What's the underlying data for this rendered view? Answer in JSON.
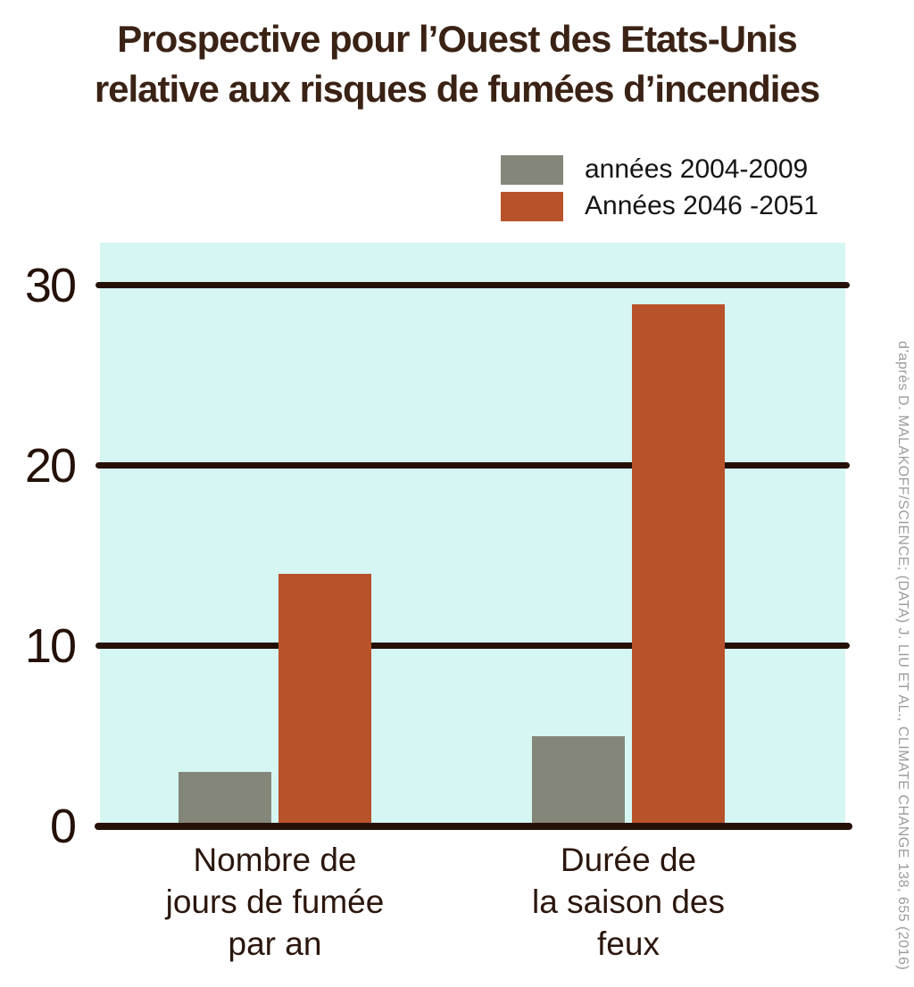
{
  "title": {
    "line1": "Prospective pour l’Ouest des Etats-Unis",
    "line2": "relative aux risques de fumées d’incendies"
  },
  "legend": {
    "items": [
      {
        "label": "années 2004-2009",
        "color": "#85867a"
      },
      {
        "label": "Années 2046 -2051",
        "color": "#b8522b"
      }
    ]
  },
  "credit": "d’après D. MALAKOFF/SCIENCE; (DATA) J. LIU ET AL., CLIMATE CHANGE 138, 655 (2016)",
  "chart_data": {
    "type": "bar",
    "title": "Prospective pour l’Ouest des Etats-Unis relative aux risques de fumées d’incendies",
    "categories": [
      [
        "Nombre de",
        "jours de fumée",
        "par an"
      ],
      [
        "Durée de",
        "la saison des",
        "feux"
      ]
    ],
    "series": [
      {
        "name": "années 2004-2009",
        "color": "#85867a",
        "values": [
          3,
          5
        ]
      },
      {
        "name": "Années 2046 -2051",
        "color": "#b8522b",
        "values": [
          14,
          29
        ]
      }
    ],
    "xlabel": "",
    "ylabel": "",
    "yticks": [
      0,
      10,
      20,
      30
    ],
    "ylim": [
      0,
      32.4
    ],
    "grid": "horizontal",
    "legend_position": "top-right",
    "plot_bg": "#d5f6f3",
    "axis_color": "#251107"
  }
}
